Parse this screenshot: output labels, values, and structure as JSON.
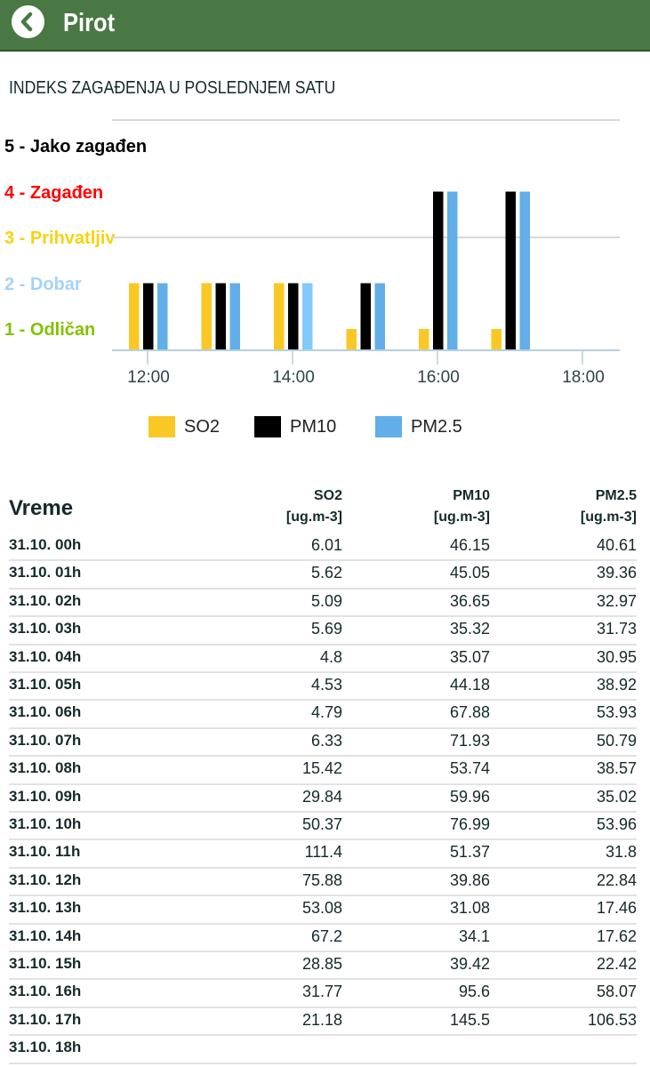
{
  "header": {
    "title": "Pirot",
    "back_icon": "chevron-left-circle-icon"
  },
  "section_title": "INDEKS ZAGAĐENJA U POSLEDNJEM SATU",
  "chart_data": {
    "type": "bar",
    "title": "INDEKS ZAGAĐENJA U POSLEDNJEM SATU",
    "y_levels": [
      {
        "value": 5,
        "label": "5 - Jako zagađen",
        "color": "#000000"
      },
      {
        "value": 4,
        "label": "4 - Zagađen",
        "color": "#ff0000"
      },
      {
        "value": 3,
        "label": "3 - Prihvatljiv",
        "color": "#f5d312"
      },
      {
        "value": 2,
        "label": "2 - Dobar",
        "color": "#a6d2f7"
      },
      {
        "value": 1,
        "label": "1 - Odličan",
        "color": "#84c000"
      }
    ],
    "x_hours": [
      12,
      13,
      14,
      15,
      16,
      17
    ],
    "x_ticks": [
      {
        "hour": 12,
        "label": "12:00"
      },
      {
        "hour": 14,
        "label": "14:00"
      },
      {
        "hour": 16,
        "label": "16:00"
      },
      {
        "hour": 18,
        "label": "18:00"
      }
    ],
    "series": [
      {
        "name": "SO2",
        "color": "#f9c825",
        "values": [
          2,
          2,
          2,
          1,
          1,
          1
        ]
      },
      {
        "name": "PM10",
        "color": "#000000",
        "values": [
          2,
          2,
          2,
          2,
          4,
          4
        ]
      },
      {
        "name": "PM2.5",
        "color": "#62aee8",
        "values": [
          2,
          2,
          2,
          2,
          4,
          4
        ],
        "highlight_index": 2,
        "highlight_color": "#81cafb"
      }
    ],
    "ylim": [
      0,
      5
    ],
    "legend_position": "bottom"
  },
  "table": {
    "time_header": "Vreme",
    "columns": [
      {
        "name": "SO2",
        "unit": "[ug.m-3]"
      },
      {
        "name": "PM10",
        "unit": "[ug.m-3]"
      },
      {
        "name": "PM2.5",
        "unit": "[ug.m-3]"
      }
    ],
    "rows": [
      [
        "31.10. 00h",
        "6.01",
        "46.15",
        "40.61"
      ],
      [
        "31.10. 01h",
        "5.62",
        "45.05",
        "39.36"
      ],
      [
        "31.10. 02h",
        "5.09",
        "36.65",
        "32.97"
      ],
      [
        "31.10. 03h",
        "5.69",
        "35.32",
        "31.73"
      ],
      [
        "31.10. 04h",
        "4.8",
        "35.07",
        "30.95"
      ],
      [
        "31.10. 05h",
        "4.53",
        "44.18",
        "38.92"
      ],
      [
        "31.10. 06h",
        "4.79",
        "67.88",
        "53.93"
      ],
      [
        "31.10. 07h",
        "6.33",
        "71.93",
        "50.79"
      ],
      [
        "31.10. 08h",
        "15.42",
        "53.74",
        "38.57"
      ],
      [
        "31.10. 09h",
        "29.84",
        "59.96",
        "35.02"
      ],
      [
        "31.10. 10h",
        "50.37",
        "76.99",
        "53.96"
      ],
      [
        "31.10. 11h",
        "111.4",
        "51.37",
        "31.8"
      ],
      [
        "31.10. 12h",
        "75.88",
        "39.86",
        "22.84"
      ],
      [
        "31.10. 13h",
        "53.08",
        "31.08",
        "17.46"
      ],
      [
        "31.10. 14h",
        "67.2",
        "34.1",
        "17.62"
      ],
      [
        "31.10. 15h",
        "28.85",
        "39.42",
        "22.42"
      ],
      [
        "31.10. 16h",
        "31.77",
        "95.6",
        "58.07"
      ],
      [
        "31.10. 17h",
        "21.18",
        "145.5",
        "106.53"
      ],
      [
        "31.10. 18h",
        "",
        "",
        ""
      ]
    ]
  }
}
